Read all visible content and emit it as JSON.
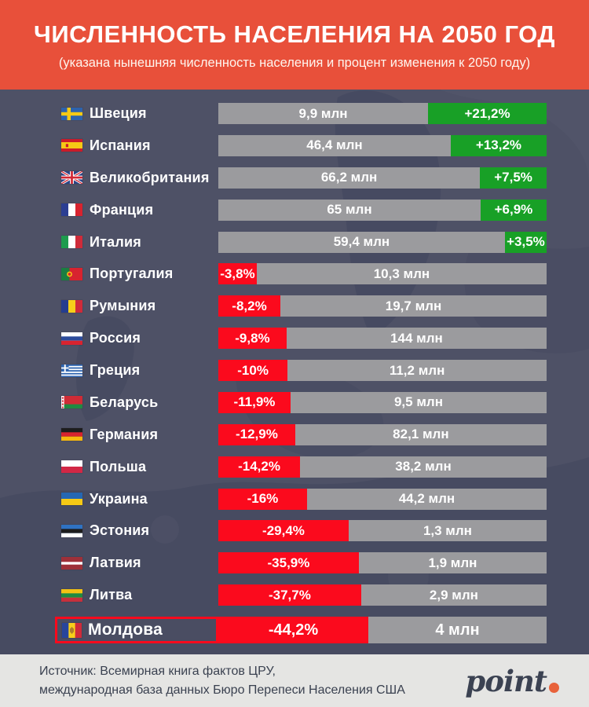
{
  "header": {
    "title": "ЧИСЛЕННОСТЬ НАСЕЛЕНИЯ НА 2050 ГОД",
    "subtitle": "(указана нынешняя численность населения и процент изменения к 2050 году)",
    "bg_color": "#e8503a"
  },
  "chart_data": {
    "type": "bar",
    "orientation": "horizontal",
    "title": "ЧИСЛЕННОСТЬ НАСЕЛЕНИЯ НА 2050 ГОД",
    "subtitle": "(указана нынешняя численность населения и процент изменения к 2050 году)",
    "unit": "млн человек",
    "legend_position": "none",
    "grid": false,
    "colors": {
      "population_bar": "#9b9b9e",
      "increase": "#18a026",
      "decrease": "#fb0a1d",
      "background": "#4e5166"
    },
    "highlight_country": "Молдова",
    "rows": [
      {
        "country": "Швеция",
        "flag": "sweden",
        "population_mln": 9.9,
        "population_label": "9,9 млн",
        "change_pct": 21.2,
        "change_label": "+21,2%",
        "bar_fraction": 0.361
      },
      {
        "country": "Испания",
        "flag": "spain",
        "population_mln": 46.4,
        "population_label": "46,4 млн",
        "change_pct": 13.2,
        "change_label": "+13,2%",
        "bar_fraction": 0.292
      },
      {
        "country": "Великобритания",
        "flag": "uk",
        "population_mln": 66.2,
        "population_label": "66,2 млн",
        "change_pct": 7.5,
        "change_label": "+7,5%",
        "bar_fraction": 0.203
      },
      {
        "country": "Франция",
        "flag": "france",
        "population_mln": 65,
        "population_label": "65 млн",
        "change_pct": 6.9,
        "change_label": "+6,9%",
        "bar_fraction": 0.201
      },
      {
        "country": "Италия",
        "flag": "italy",
        "population_mln": 59.4,
        "population_label": "59,4 млн",
        "change_pct": 3.5,
        "change_label": "+3,5%",
        "bar_fraction": 0.127
      },
      {
        "country": "Португалия",
        "flag": "portugal",
        "population_mln": 10.3,
        "population_label": "10,3 млн",
        "change_pct": -3.8,
        "change_label": "-3,8%",
        "bar_fraction": 0.117
      },
      {
        "country": "Румыния",
        "flag": "romania",
        "population_mln": 19.7,
        "population_label": "19,7 млн",
        "change_pct": -8.2,
        "change_label": "-8,2%",
        "bar_fraction": 0.189
      },
      {
        "country": "Россия",
        "flag": "russia",
        "population_mln": 144,
        "population_label": "144 млн",
        "change_pct": -9.8,
        "change_label": "-9,8%",
        "bar_fraction": 0.208
      },
      {
        "country": "Греция",
        "flag": "greece",
        "population_mln": 11.2,
        "population_label": "11,2 млн",
        "change_pct": -10,
        "change_label": "-10%",
        "bar_fraction": 0.211
      },
      {
        "country": "Беларусь",
        "flag": "belarus",
        "population_mln": 9.5,
        "population_label": "9,5 млн",
        "change_pct": -11.9,
        "change_label": "-11,9%",
        "bar_fraction": 0.22
      },
      {
        "country": "Германия",
        "flag": "germany",
        "population_mln": 82.1,
        "population_label": "82,1 млн",
        "change_pct": -12.9,
        "change_label": "-12,9%",
        "bar_fraction": 0.234
      },
      {
        "country": "Польша",
        "flag": "poland",
        "population_mln": 38.2,
        "population_label": "38,2 млн",
        "change_pct": -14.2,
        "change_label": "-14,2%",
        "bar_fraction": 0.249
      },
      {
        "country": "Украина",
        "flag": "ukraine",
        "population_mln": 44.2,
        "population_label": "44,2 млн",
        "change_pct": -16,
        "change_label": "-16%",
        "bar_fraction": 0.27
      },
      {
        "country": "Эстония",
        "flag": "estonia",
        "population_mln": 1.3,
        "population_label": "1,3 млн",
        "change_pct": -29.4,
        "change_label": "-29,4%",
        "bar_fraction": 0.397
      },
      {
        "country": "Латвия",
        "flag": "latvia",
        "population_mln": 1.9,
        "population_label": "1,9 млн",
        "change_pct": -35.9,
        "change_label": "-35,9%",
        "bar_fraction": 0.428
      },
      {
        "country": "Литва",
        "flag": "lithuania",
        "population_mln": 2.9,
        "population_label": "2,9 млн",
        "change_pct": -37.7,
        "change_label": "-37,7%",
        "bar_fraction": 0.435
      },
      {
        "country": "Молдова",
        "flag": "moldova",
        "population_mln": 4,
        "population_label": "4 млн",
        "change_pct": -44.2,
        "change_label": "-44,2%",
        "bar_fraction": 0.457
      }
    ]
  },
  "footer": {
    "source_line1": "Источник: Всемирная книга фактов ЦРУ,",
    "source_line2": "международная база данных Бюро Перепеси Населения США",
    "logo_text": "point"
  }
}
